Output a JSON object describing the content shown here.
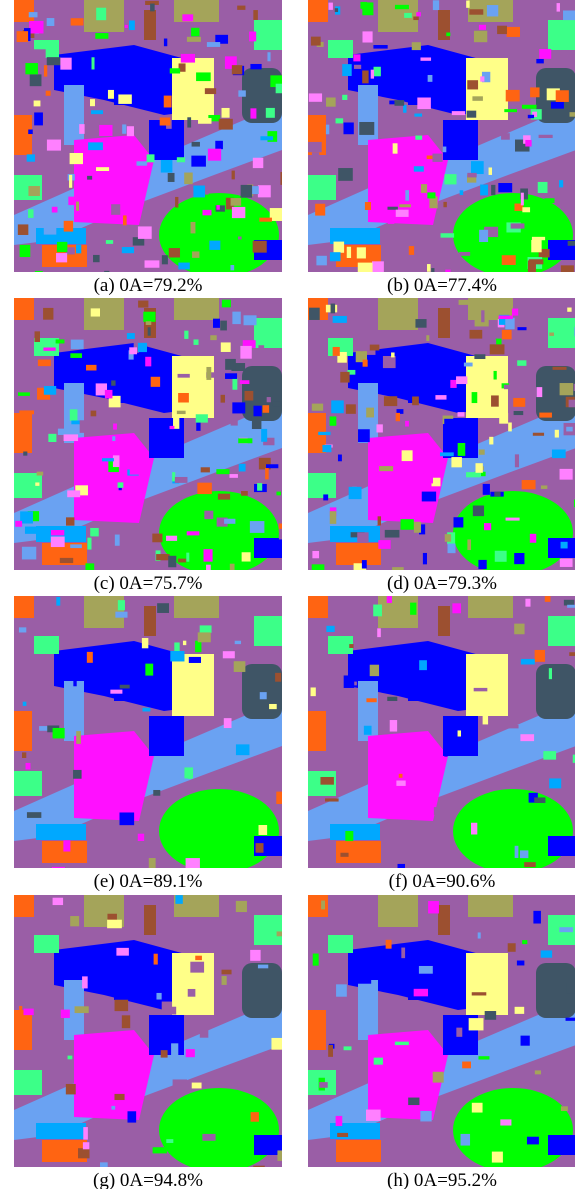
{
  "panels": [
    {
      "caption": "(a) 0A=79.2%"
    },
    {
      "caption": "(b) 0A=77.4%"
    },
    {
      "caption": "(c) 0A=75.7%"
    },
    {
      "caption": "(d) 0A=79.3%"
    },
    {
      "caption": "(e) 0A=89.1%"
    },
    {
      "caption": "(f) 0A=90.6%"
    },
    {
      "caption": "(g) 0A=94.8%"
    },
    {
      "caption": "(h) 0A=95.2%"
    }
  ]
}
